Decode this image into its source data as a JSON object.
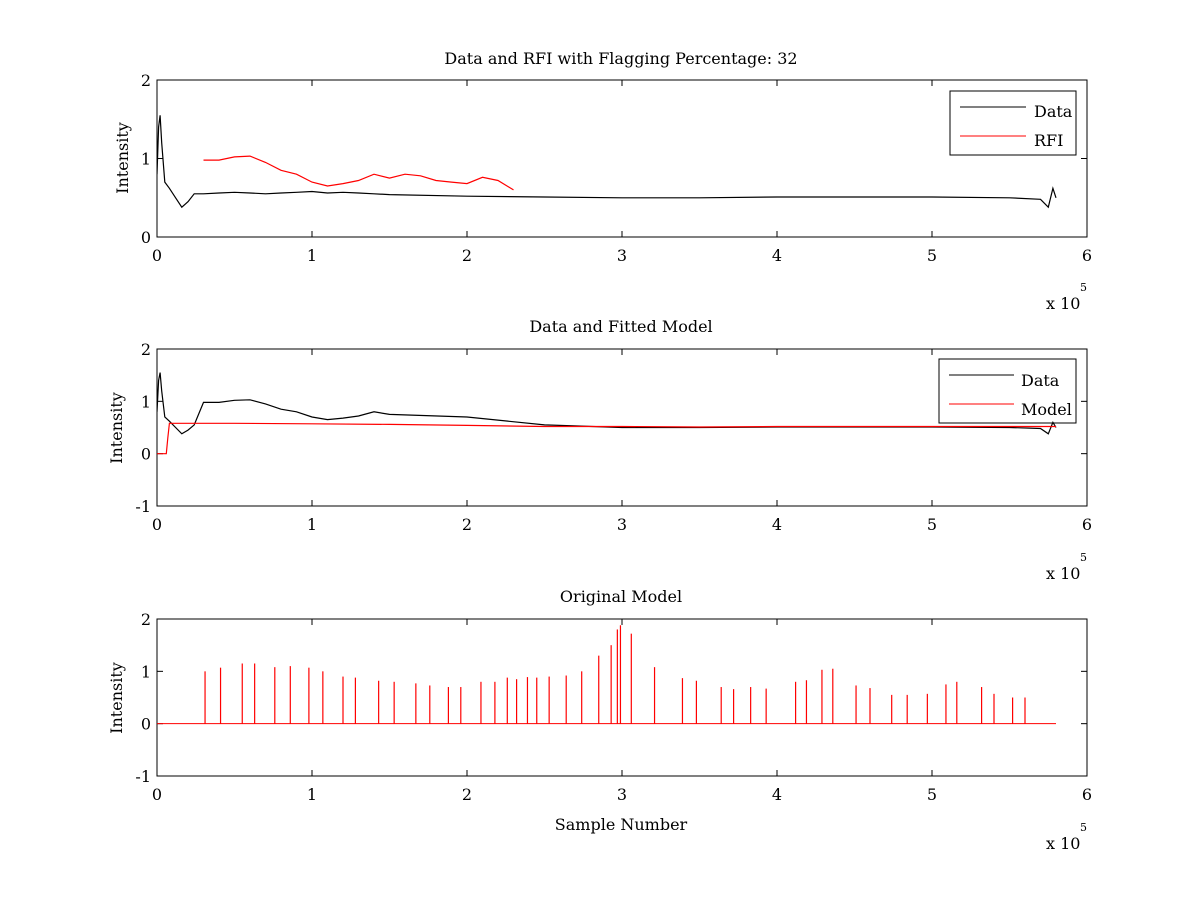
{
  "figure": {
    "background": "#ffffff",
    "data_color": "#000000",
    "rfi_color": "#ff0000"
  },
  "chart_data": [
    {
      "type": "line",
      "title": "Data and RFI with Flagging Percentage: 32",
      "xlabel": "",
      "ylabel": "Intensity",
      "xlim": [
        0,
        600000
      ],
      "ylim": [
        0,
        2
      ],
      "xticks": [
        0,
        1,
        2,
        3,
        4,
        5,
        6
      ],
      "yticks": [
        0,
        1,
        2
      ],
      "x_exponent_label": "x 10",
      "x_exponent": "5",
      "grid": false,
      "legend": {
        "placement": "top-right",
        "entries": [
          "Data",
          "RFI"
        ]
      },
      "series": [
        {
          "name": "Data",
          "color": "#000000",
          "x": [
            0,
            1000,
            2000,
            3000,
            5000,
            8000,
            12000,
            16000,
            20000,
            24000,
            30000,
            40000,
            50000,
            60000,
            70000,
            80000,
            90000,
            100000,
            110000,
            120000,
            130000,
            140000,
            150000,
            200000,
            250000,
            300000,
            350000,
            400000,
            450000,
            500000,
            550000,
            570000,
            575000,
            578000,
            580000
          ],
          "y": [
            0.8,
            1.4,
            1.55,
            1.2,
            0.7,
            0.62,
            0.5,
            0.38,
            0.45,
            0.55,
            0.55,
            0.56,
            0.57,
            0.56,
            0.55,
            0.56,
            0.57,
            0.58,
            0.56,
            0.57,
            0.56,
            0.55,
            0.54,
            0.52,
            0.51,
            0.5,
            0.5,
            0.51,
            0.51,
            0.51,
            0.5,
            0.48,
            0.38,
            0.62,
            0.5
          ]
        },
        {
          "name": "RFI",
          "color": "#ff0000",
          "x": [
            30000,
            40000,
            50000,
            60000,
            70000,
            80000,
            90000,
            100000,
            110000,
            120000,
            130000,
            140000,
            150000,
            160000,
            170000,
            180000,
            190000,
            200000,
            210000,
            220000,
            230000
          ],
          "y": [
            0.98,
            0.98,
            1.02,
            1.03,
            0.95,
            0.85,
            0.8,
            0.7,
            0.65,
            0.68,
            0.72,
            0.8,
            0.75,
            0.8,
            0.78,
            0.72,
            0.7,
            0.68,
            0.76,
            0.72,
            0.6
          ]
        }
      ]
    },
    {
      "type": "line",
      "title": "Data and Fitted Model",
      "xlabel": "",
      "ylabel": "Intensity",
      "xlim": [
        0,
        600000
      ],
      "ylim": [
        -1,
        2
      ],
      "xticks": [
        0,
        1,
        2,
        3,
        4,
        5,
        6
      ],
      "yticks": [
        -1,
        0,
        1,
        2
      ],
      "x_exponent_label": "x 10",
      "x_exponent": "5",
      "grid": false,
      "legend": {
        "placement": "top-right",
        "entries": [
          "Data",
          "Model"
        ]
      },
      "series": [
        {
          "name": "Data",
          "color": "#000000",
          "x": [
            0,
            1000,
            2000,
            3000,
            5000,
            8000,
            12000,
            16000,
            20000,
            24000,
            30000,
            40000,
            50000,
            60000,
            70000,
            80000,
            90000,
            100000,
            110000,
            120000,
            130000,
            140000,
            150000,
            200000,
            250000,
            300000,
            350000,
            400000,
            450000,
            500000,
            550000,
            570000,
            575000,
            578000,
            580000
          ],
          "y": [
            0.8,
            1.4,
            1.55,
            1.2,
            0.7,
            0.62,
            0.5,
            0.38,
            0.45,
            0.55,
            0.98,
            0.98,
            1.02,
            1.03,
            0.95,
            0.85,
            0.8,
            0.7,
            0.65,
            0.68,
            0.72,
            0.8,
            0.75,
            0.7,
            0.55,
            0.5,
            0.5,
            0.51,
            0.51,
            0.51,
            0.5,
            0.48,
            0.38,
            0.6,
            0.5
          ]
        },
        {
          "name": "Model",
          "color": "#ff0000",
          "x": [
            0,
            6000,
            7000,
            8000,
            20000,
            50000,
            100000,
            150000,
            200000,
            250000,
            300000,
            350000,
            400000,
            450000,
            500000,
            550000,
            580000
          ],
          "y": [
            0,
            0,
            0.3,
            0.58,
            0.58,
            0.58,
            0.57,
            0.56,
            0.54,
            0.52,
            0.52,
            0.51,
            0.52,
            0.52,
            0.52,
            0.52,
            0.52
          ]
        }
      ]
    },
    {
      "type": "line",
      "title": "Original Model",
      "xlabel": "Sample Number",
      "ylabel": "Intensity",
      "xlim": [
        0,
        600000
      ],
      "ylim": [
        -1,
        2
      ],
      "xticks": [
        0,
        1,
        2,
        3,
        4,
        5,
        6
      ],
      "yticks": [
        -1,
        0,
        1,
        2
      ],
      "x_exponent_label": "x 10",
      "x_exponent": "5",
      "grid": false,
      "series": [
        {
          "name": "",
          "color": "#ff0000",
          "x": [
            31000,
            41000,
            55000,
            63000,
            76000,
            86000,
            98000,
            107000,
            120000,
            128000,
            143000,
            153000,
            167000,
            176000,
            188000,
            196000,
            209000,
            218000,
            226000,
            232000,
            239000,
            245000,
            253000,
            264000,
            274000,
            285000,
            293000,
            297000,
            299000,
            306000,
            321000,
            339000,
            348000,
            364000,
            372000,
            383000,
            393000,
            412000,
            419000,
            429000,
            436000,
            451000,
            460000,
            474000,
            484000,
            497000,
            509000,
            516000,
            532000,
            540000,
            552000,
            560000
          ],
          "y": [
            1.0,
            1.07,
            1.15,
            1.15,
            1.08,
            1.1,
            1.07,
            1.0,
            0.9,
            0.88,
            0.82,
            0.8,
            0.77,
            0.73,
            0.7,
            0.7,
            0.8,
            0.8,
            0.88,
            0.85,
            0.89,
            0.88,
            0.9,
            0.92,
            1.0,
            1.3,
            1.5,
            1.8,
            1.88,
            1.72,
            1.08,
            0.87,
            0.82,
            0.7,
            0.66,
            0.7,
            0.67,
            0.8,
            0.83,
            1.03,
            1.05,
            0.73,
            0.68,
            0.55,
            0.55,
            0.57,
            0.75,
            0.8,
            0.7,
            0.57,
            0.5,
            0.5
          ]
        }
      ]
    }
  ]
}
